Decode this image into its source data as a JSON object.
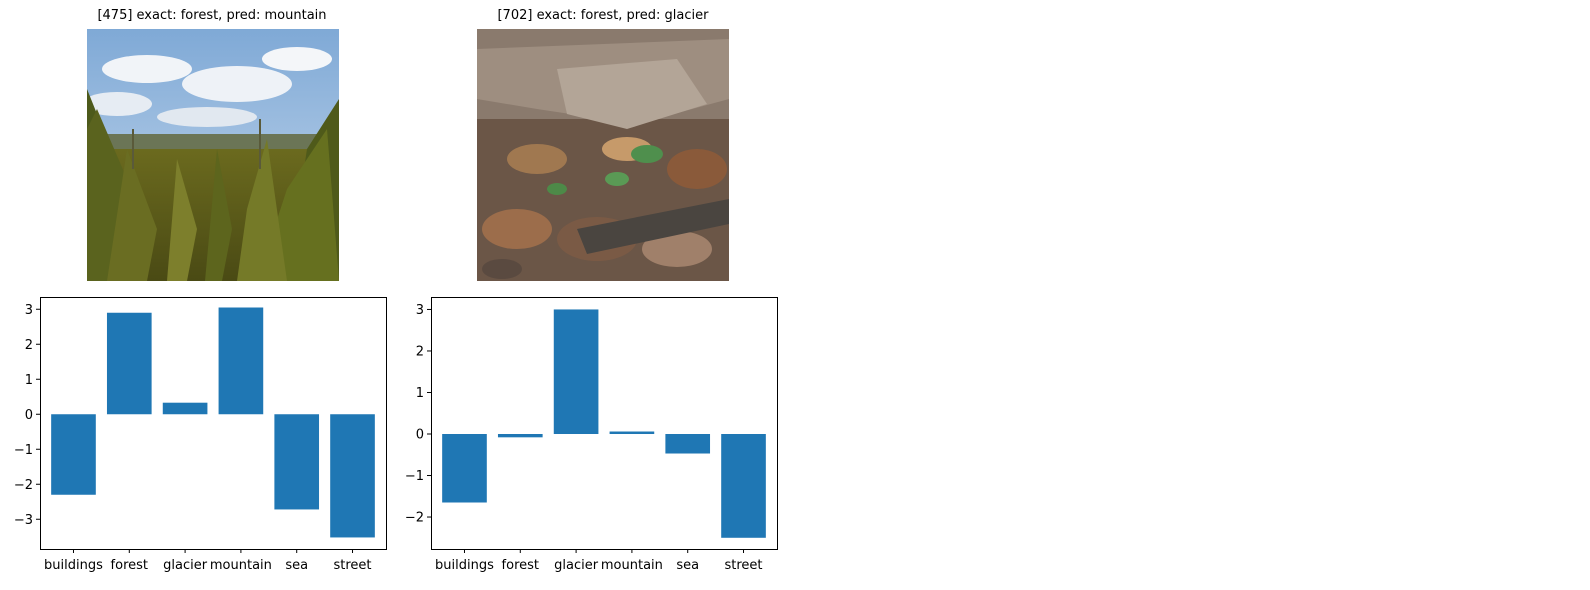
{
  "panels": [
    {
      "title": "[475] exact: forest, pred: mountain",
      "image_alt": "forest photo with pine trees and cloudy sky"
    },
    {
      "title": "[702] exact: forest, pred: glacier",
      "image_alt": "forest floor with dry leaves and log"
    }
  ],
  "chart_data": [
    {
      "type": "bar",
      "categories": [
        "buildings",
        "forest",
        "glacier",
        "mountain",
        "sea",
        "street"
      ],
      "values": [
        -2.3,
        2.9,
        0.33,
        3.05,
        -2.72,
        -3.52
      ],
      "ylim": [
        -3.85,
        3.35
      ],
      "yticks": [
        3,
        2,
        1,
        0,
        -1,
        -2,
        -3
      ],
      "ytick_labels": [
        "3",
        "2",
        "1",
        "0",
        "−1",
        "−2",
        "−3"
      ],
      "color": "#1f77b4"
    },
    {
      "type": "bar",
      "categories": [
        "buildings",
        "forest",
        "glacier",
        "mountain",
        "sea",
        "street"
      ],
      "values": [
        -1.65,
        -0.08,
        3.0,
        0.06,
        -0.47,
        -2.5
      ],
      "ylim": [
        -2.77,
        3.3
      ],
      "yticks": [
        3,
        2,
        1,
        0,
        -1,
        -2
      ],
      "ytick_labels": [
        "3",
        "2",
        "1",
        "0",
        "−1",
        "−2"
      ],
      "color": "#1f77b4"
    }
  ]
}
